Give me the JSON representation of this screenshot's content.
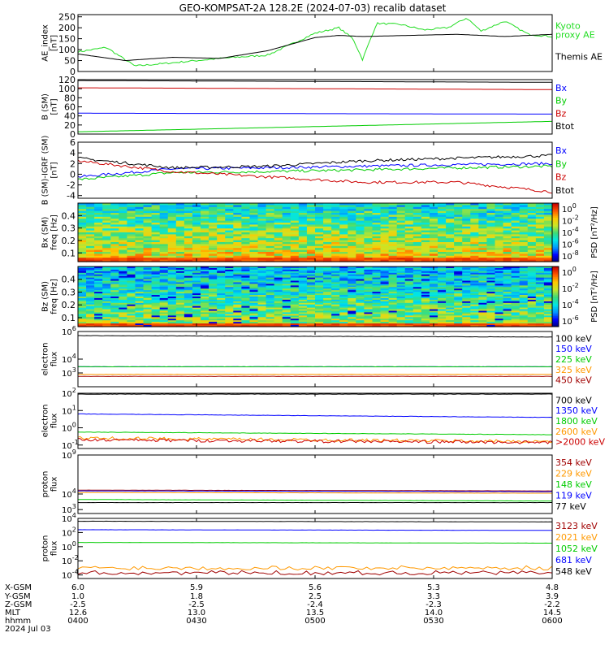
{
  "title": "GEO-KOMPSAT-2A 128.2E (2024-07-03) recalib dataset",
  "colors": {
    "black": "#000000",
    "blue": "#0000ff",
    "green": "#00cc00",
    "red": "#cc0000",
    "orange": "#ff9900",
    "darkred": "#a00000",
    "kyoto": "#22dd22"
  },
  "chart_data": [
    {
      "type": "line",
      "id": "ae",
      "ylabel": "AE_index\n[nT]",
      "ylim": [
        0,
        260
      ],
      "yticks": [
        0,
        50,
        100,
        150,
        200,
        250
      ],
      "series": [
        {
          "name": "Kyoto\nproxy AE",
          "color": "#22dd22",
          "x": [
            0,
            0.06,
            0.12,
            0.2,
            0.3,
            0.4,
            0.5,
            0.55,
            0.58,
            0.6,
            0.63,
            0.68,
            0.73,
            0.78,
            0.82,
            0.85,
            0.9,
            0.95,
            1.0
          ],
          "values": [
            90,
            110,
            25,
            40,
            60,
            75,
            175,
            200,
            150,
            55,
            220,
            215,
            190,
            200,
            245,
            185,
            230,
            170,
            160
          ]
        },
        {
          "name": "Themis AE",
          "color": "#000000",
          "x": [
            0,
            0.1,
            0.2,
            0.3,
            0.4,
            0.5,
            0.55,
            0.6,
            0.7,
            0.8,
            0.9,
            1.0
          ],
          "values": [
            80,
            50,
            65,
            60,
            95,
            155,
            165,
            160,
            165,
            170,
            160,
            170
          ]
        }
      ]
    },
    {
      "type": "line",
      "id": "bsm",
      "ylabel": "B (SM)\n[nT]",
      "ylim": [
        0,
        120
      ],
      "yticks": [
        0,
        20,
        40,
        60,
        80,
        100,
        120
      ],
      "series": [
        {
          "name": "Bx",
          "color": "#0000ff",
          "x": [
            0,
            1
          ],
          "values": [
            46,
            44
          ]
        },
        {
          "name": "By",
          "color": "#00cc00",
          "x": [
            0,
            1
          ],
          "values": [
            5,
            28
          ]
        },
        {
          "name": "Bz",
          "color": "#cc0000",
          "x": [
            0,
            1
          ],
          "values": [
            102,
            98
          ]
        },
        {
          "name": "Btot",
          "color": "#000000",
          "x": [
            0,
            1
          ],
          "values": [
            118,
            114
          ]
        }
      ]
    },
    {
      "type": "line",
      "id": "bdiff",
      "ylabel": "B (SM)-IGRF (SM)\n[nT]",
      "ylim": [
        -4.5,
        6
      ],
      "yticks": [
        -4,
        -2,
        0,
        2,
        4,
        6
      ],
      "series": [
        {
          "name": "Bx",
          "color": "#0000ff",
          "x": [
            0,
            0.2,
            0.4,
            0.6,
            0.8,
            1.0
          ],
          "values": [
            -0.5,
            1.0,
            1.2,
            1.5,
            1.8,
            2.0
          ]
        },
        {
          "name": "By",
          "color": "#00cc00",
          "x": [
            0,
            0.2,
            0.4,
            0.6,
            0.8,
            1.0
          ],
          "values": [
            -1.0,
            0.3,
            0.5,
            0.8,
            1.2,
            1.5
          ]
        },
        {
          "name": "Bz",
          "color": "#cc0000",
          "x": [
            0,
            0.2,
            0.4,
            0.6,
            0.8,
            1.0
          ],
          "values": [
            2.5,
            0.5,
            -0.5,
            -1.5,
            -1.5,
            -3.3
          ]
        },
        {
          "name": "Btot",
          "color": "#000000",
          "x": [
            0,
            0.2,
            0.4,
            0.6,
            0.8,
            1.0
          ],
          "values": [
            3.0,
            1.2,
            1.5,
            2.5,
            3.0,
            3.5
          ]
        }
      ]
    },
    {
      "type": "heatmap",
      "id": "bxspec",
      "ylabel": "Bx (SM)\nfreq [Hz]",
      "ylim": [
        0.03,
        0.5
      ],
      "yticks": [
        0.1,
        0.2,
        0.3,
        0.4
      ],
      "colorbar_label": "PSD [nT^2/Hz]",
      "colorbar_ticks": [
        "10^0",
        "10^-2",
        "10^-4",
        "10^-6",
        "10^-8"
      ]
    },
    {
      "type": "heatmap",
      "id": "bzspec",
      "ylabel": "Bz (SM)\nfreq [Hz]",
      "ylim": [
        0.03,
        0.5
      ],
      "yticks": [
        0.1,
        0.2,
        0.3,
        0.4
      ],
      "colorbar_label": "PSD [nT^2/Hz]",
      "colorbar_ticks": [
        "10^0",
        "10^-2",
        "10^-4",
        "10^-6"
      ]
    },
    {
      "type": "line",
      "id": "eflux1",
      "ylabel": "electron\nflux",
      "log": true,
      "ylim_exp": [
        2,
        6
      ],
      "ytick_labels": [
        "10^4",
        "10^6",
        "10^3"
      ],
      "series": [
        {
          "name": "100 keV",
          "color": "#000000",
          "values": [
            5.7,
            5.6
          ]
        },
        {
          "name": "150 keV",
          "color": "#0000ff",
          "values": [
            3.45,
            3.45
          ]
        },
        {
          "name": "225 keV",
          "color": "#00cc00",
          "values": [
            3.45,
            3.45
          ]
        },
        {
          "name": "325 keV",
          "color": "#ff9900",
          "values": [
            2.9,
            2.9
          ]
        },
        {
          "name": "450 keV",
          "color": "#a00000",
          "values": [
            2.75,
            2.75
          ]
        }
      ]
    },
    {
      "type": "line",
      "id": "eflux2",
      "ylabel": "electron\nflux",
      "log": true,
      "ylim_exp": [
        -1.2,
        2
      ],
      "series": [
        {
          "name": "700 keV",
          "color": "#000000",
          "values": [
            1.95,
            1.95
          ]
        },
        {
          "name": "1350 keV",
          "color": "#0000ff",
          "values": [
            0.8,
            0.6
          ]
        },
        {
          "name": "1800 keV",
          "color": "#00cc00",
          "values": [
            -0.25,
            -0.4
          ]
        },
        {
          "name": "2600 keV",
          "color": "#ff9900",
          "values": [
            -0.6,
            -0.8
          ]
        },
        {
          "name": ">2000 keV",
          "color": "#cc0000",
          "values": [
            -0.7,
            -0.85
          ]
        }
      ]
    },
    {
      "type": "line",
      "id": "pflux1",
      "ylabel": "proton\nflux",
      "log": true,
      "ylim_exp": [
        1.5,
        9
      ],
      "series": [
        {
          "name": "354 keV",
          "color": "#a00000",
          "values": [
            4.5,
            4.4
          ]
        },
        {
          "name": "229 keV",
          "color": "#ff9900",
          "values": [
            4.2,
            4.1
          ]
        },
        {
          "name": "148 keV",
          "color": "#00cc00",
          "values": [
            3.3,
            3.1
          ]
        },
        {
          "name": "119 keV",
          "color": "#0000ff",
          "values": [
            4.4,
            4.3
          ]
        },
        {
          "name": "77 keV",
          "color": "#000000",
          "values": [
            2.9,
            2.9
          ]
        }
      ]
    },
    {
      "type": "line",
      "id": "pflux2",
      "ylabel": "proton\nflux",
      "log": true,
      "ylim_exp": [
        -4.5,
        4
      ],
      "series": [
        {
          "name": "3123 keV",
          "color": "#a00000",
          "values": [
            -3.7,
            -3.7
          ]
        },
        {
          "name": "2021 keV",
          "color": "#ff9900",
          "values": [
            -3.0,
            -3.0
          ]
        },
        {
          "name": "1052 keV",
          "color": "#00cc00",
          "values": [
            0.6,
            0.5
          ]
        },
        {
          "name": "681 keV",
          "color": "#0000ff",
          "values": [
            2.4,
            2.3
          ]
        },
        {
          "name": "548 keV",
          "color": "#000000",
          "values": [
            3.6,
            3.5
          ]
        }
      ]
    }
  ],
  "ephemeris": {
    "labels": [
      "X-GSM",
      "Y-GSM",
      "Z-GSM",
      "MLT",
      "hhmm",
      "2024 Jul 03"
    ],
    "columns": [
      [
        "6.0",
        "1.0",
        "-2.5",
        "12.6",
        "0400"
      ],
      [
        "5.9",
        "1.8",
        "-2.5",
        "13.0",
        "0430"
      ],
      [
        "5.6",
        "2.5",
        "-2.4",
        "13.5",
        "0500"
      ],
      [
        "5.3",
        "3.3",
        "-2.3",
        "14.0",
        "0530"
      ],
      [
        "4.8",
        "3.9",
        "-2.2",
        "14.5",
        "0600"
      ]
    ]
  }
}
